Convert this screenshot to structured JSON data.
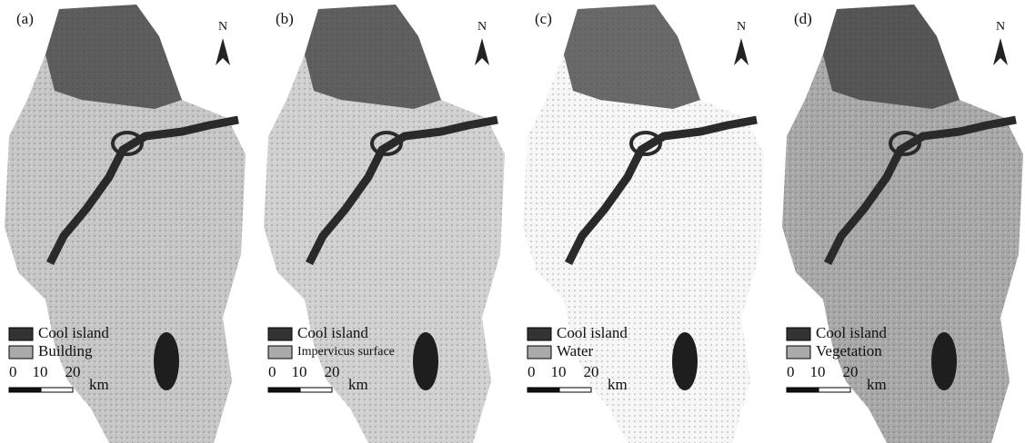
{
  "panels": [
    {
      "label": "(a)",
      "north": "N",
      "legend": [
        "Cool island",
        "Building"
      ],
      "scale": {
        "ticks": [
          0,
          10,
          20
        ],
        "unit": "km"
      }
    },
    {
      "label": "(b)",
      "north": "N",
      "legend": [
        "Cool island",
        "Impervicus surface"
      ],
      "scale": {
        "ticks": [
          0,
          10,
          20
        ],
        "unit": "km"
      }
    },
    {
      "label": "(c)",
      "north": "N",
      "legend": [
        "Cool island",
        "Water"
      ],
      "scale": {
        "ticks": [
          0,
          10,
          20
        ],
        "unit": "km"
      }
    },
    {
      "label": "(d)",
      "north": "N",
      "legend": [
        "Cool island",
        "Vegetation"
      ],
      "scale": {
        "ticks": [
          0,
          10,
          20
        ],
        "unit": "km"
      }
    }
  ]
}
